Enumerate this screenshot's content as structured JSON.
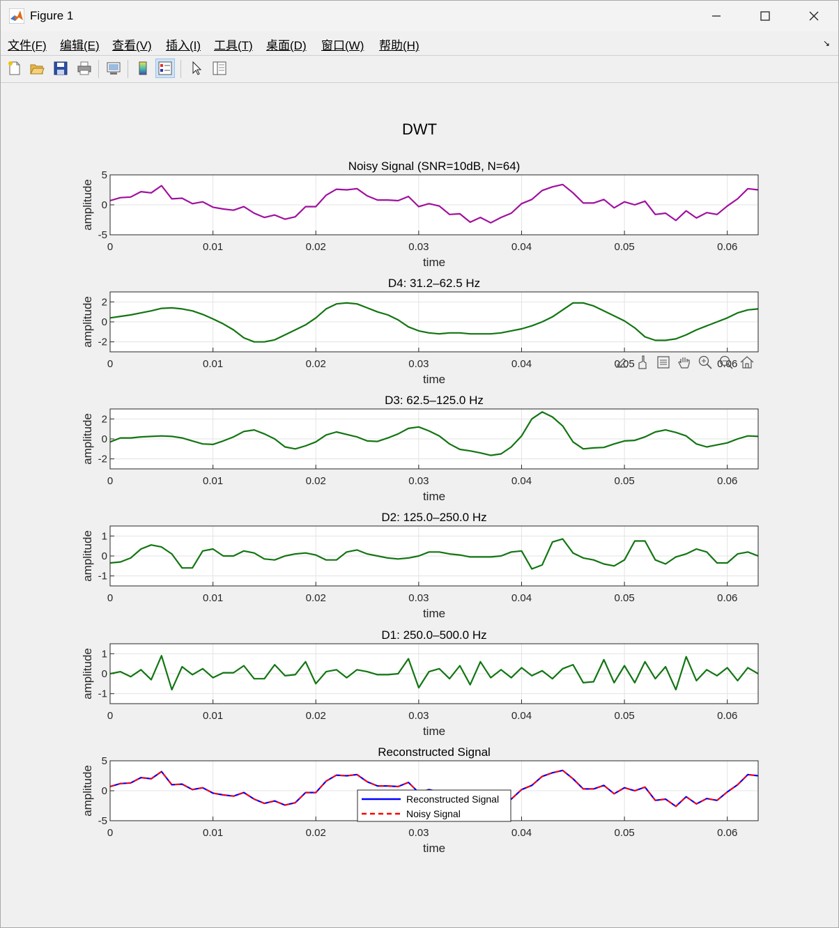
{
  "window": {
    "title": "Figure 1"
  },
  "menu": [
    "文件(F)",
    "编辑(E)",
    "查看(V)",
    "插入(I)",
    "工具(T)",
    "桌面(D)",
    "窗口(W)",
    "帮助(H)"
  ],
  "menu_corner": "↘",
  "toolbar_icons": [
    "new-figure-icon",
    "open-file-icon",
    "save-icon",
    "print-icon",
    "link-plot-icon",
    "insert-colorbar-icon",
    "insert-legend-icon",
    "edit-plot-icon",
    "property-inspector-icon"
  ],
  "axes_toolbar_icons": [
    "brush-export-icon",
    "data-brush-icon",
    "data-tips-icon",
    "pan-icon",
    "zoom-in-icon",
    "zoom-out-icon",
    "restore-view-icon"
  ],
  "colors": {
    "noisy": "#a0109e",
    "detail": "#127512",
    "recon": "#0000ff",
    "noisy_dashed": "#ff0000"
  },
  "chart_data": {
    "type": "line",
    "title": "DWT",
    "x_start": 0,
    "x_step": 0.001,
    "n": 64,
    "xlim": [
      0,
      0.063
    ],
    "x_ticks": [
      0,
      0.01,
      0.02,
      0.03,
      0.04,
      0.05,
      0.06
    ],
    "x_tick_labels": [
      "0",
      "0.01",
      "0.02",
      "0.03",
      "0.04",
      "0.05",
      "0.06"
    ],
    "subplots": [
      {
        "title": "Noisy Signal (SNR=10dB, N=64)",
        "xlabel": "time",
        "ylabel": "amplitude",
        "ylim": [
          -5,
          5
        ],
        "y_ticks": [
          -5,
          0,
          5
        ],
        "grid": true,
        "series": [
          {
            "values": [
              0.7,
              1.2,
              1.3,
              2.2,
              2.0,
              3.2,
              1.0,
              1.1,
              0.2,
              0.5,
              -0.4,
              -0.7,
              -0.9,
              -0.3,
              -1.4,
              -2.1,
              -1.7,
              -2.4,
              -2.0,
              -0.3,
              -0.3,
              1.6,
              2.6,
              2.5,
              2.7,
              1.5,
              0.8,
              0.8,
              0.7,
              1.4,
              -0.3,
              0.2,
              -0.2,
              -1.6,
              -1.5,
              -2.9,
              -2.1,
              -3.0,
              -2.1,
              -1.4,
              0.2,
              0.9,
              2.4,
              3.0,
              3.4,
              2.0,
              0.3,
              0.3,
              0.9,
              -0.5,
              0.5,
              0.0,
              0.6,
              -1.6,
              -1.4,
              -2.6,
              -1.0,
              -2.2,
              -1.3,
              -1.6,
              -0.2,
              1.0,
              2.7,
              2.5
            ]
          }
        ]
      },
      {
        "title": "D4: 31.2–62.5 Hz",
        "xlabel": "time",
        "ylabel": "amplitude",
        "ylim": [
          -3,
          3
        ],
        "y_ticks": [
          -2,
          0,
          2
        ],
        "grid": true,
        "series": [
          {
            "values": [
              0.4,
              0.55,
              0.7,
              0.9,
              1.1,
              1.35,
              1.4,
              1.3,
              1.1,
              0.75,
              0.3,
              -0.2,
              -0.8,
              -1.6,
              -2.0,
              -2.0,
              -1.8,
              -1.3,
              -0.8,
              -0.3,
              0.4,
              1.3,
              1.8,
              1.9,
              1.8,
              1.4,
              1.0,
              0.7,
              0.2,
              -0.5,
              -0.9,
              -1.1,
              -1.2,
              -1.1,
              -1.1,
              -1.2,
              -1.2,
              -1.2,
              -1.1,
              -0.9,
              -0.7,
              -0.4,
              0.0,
              0.5,
              1.2,
              1.9,
              1.9,
              1.6,
              1.1,
              0.6,
              0.1,
              -0.6,
              -1.5,
              -1.85,
              -1.85,
              -1.7,
              -1.3,
              -0.8,
              -0.4,
              0.0,
              0.4,
              0.9,
              1.2,
              1.3
            ]
          }
        ]
      },
      {
        "title": "D3: 62.5–125.0 Hz",
        "xlabel": "time",
        "ylabel": "amplitude",
        "ylim": [
          -3,
          3
        ],
        "y_ticks": [
          -2,
          0,
          2
        ],
        "grid": true,
        "series": [
          {
            "values": [
              -0.3,
              0.1,
              0.1,
              0.2,
              0.25,
              0.3,
              0.25,
              0.1,
              -0.2,
              -0.5,
              -0.55,
              -0.2,
              0.2,
              0.75,
              0.9,
              0.5,
              0.0,
              -0.8,
              -1.0,
              -0.7,
              -0.3,
              0.4,
              0.7,
              0.45,
              0.2,
              -0.2,
              -0.25,
              0.1,
              0.5,
              1.05,
              1.2,
              0.8,
              0.3,
              -0.5,
              -1.05,
              -1.2,
              -1.4,
              -1.65,
              -1.5,
              -0.8,
              0.3,
              2.0,
              2.7,
              2.2,
              1.3,
              -0.3,
              -1.0,
              -0.9,
              -0.85,
              -0.5,
              -0.2,
              -0.15,
              0.2,
              0.7,
              0.9,
              0.65,
              0.3,
              -0.5,
              -0.8,
              -0.6,
              -0.4,
              0.0,
              0.3,
              0.25
            ]
          }
        ]
      },
      {
        "title": "D2: 125.0–250.0 Hz",
        "xlabel": "time",
        "ylabel": "amplitude",
        "ylim": [
          -1.5,
          1.5
        ],
        "y_ticks": [
          -1,
          0,
          1
        ],
        "grid": true,
        "series": [
          {
            "values": [
              -0.35,
              -0.3,
              -0.1,
              0.35,
              0.55,
              0.45,
              0.1,
              -0.6,
              -0.6,
              0.25,
              0.35,
              0.0,
              0.0,
              0.25,
              0.15,
              -0.15,
              -0.2,
              0.0,
              0.1,
              0.15,
              0.05,
              -0.2,
              -0.2,
              0.2,
              0.3,
              0.1,
              0.0,
              -0.1,
              -0.15,
              -0.1,
              0.0,
              0.2,
              0.2,
              0.1,
              0.05,
              -0.05,
              -0.05,
              -0.05,
              0.0,
              0.2,
              0.25,
              -0.65,
              -0.45,
              0.7,
              0.85,
              0.15,
              -0.1,
              -0.2,
              -0.4,
              -0.5,
              -0.2,
              0.75,
              0.75,
              -0.2,
              -0.4,
              -0.05,
              0.1,
              0.35,
              0.2,
              -0.35,
              -0.35,
              0.1,
              0.2,
              0.0
            ]
          }
        ]
      },
      {
        "title": "D1: 250.0–500.0 Hz",
        "xlabel": "time",
        "ylabel": "amplitude",
        "ylim": [
          -1.5,
          1.5
        ],
        "y_ticks": [
          -1,
          0,
          1
        ],
        "grid": true,
        "series": [
          {
            "values": [
              0.0,
              0.1,
              -0.15,
              0.2,
              -0.3,
              0.9,
              -0.8,
              0.35,
              -0.05,
              0.25,
              -0.2,
              0.05,
              0.05,
              0.4,
              -0.25,
              -0.25,
              0.45,
              -0.1,
              -0.05,
              0.6,
              -0.5,
              0.1,
              0.2,
              -0.2,
              0.2,
              0.1,
              -0.05,
              -0.05,
              0.0,
              0.75,
              -0.7,
              0.1,
              0.25,
              -0.25,
              0.4,
              -0.55,
              0.6,
              -0.2,
              0.2,
              -0.2,
              0.3,
              -0.1,
              0.15,
              -0.25,
              0.25,
              0.45,
              -0.45,
              -0.4,
              0.7,
              -0.45,
              0.4,
              -0.45,
              0.6,
              -0.25,
              0.35,
              -0.8,
              0.85,
              -0.35,
              0.2,
              -0.1,
              0.3,
              -0.35,
              0.3,
              0.0
            ]
          }
        ]
      },
      {
        "title": "Reconstructed Signal",
        "xlabel": "time",
        "ylabel": "amplitude",
        "ylim": [
          -5,
          5
        ],
        "y_ticks": [
          -5,
          0,
          5
        ],
        "grid": true,
        "legend": {
          "position": "south",
          "entries": [
            "Reconstructed Signal",
            "Noisy Signal"
          ]
        },
        "series": [
          {
            "name": "Reconstructed Signal",
            "style": "solid",
            "values": [
              0.7,
              1.2,
              1.3,
              2.2,
              2.0,
              3.2,
              1.0,
              1.1,
              0.2,
              0.5,
              -0.4,
              -0.7,
              -0.9,
              -0.3,
              -1.4,
              -2.1,
              -1.7,
              -2.4,
              -2.0,
              -0.3,
              -0.3,
              1.6,
              2.6,
              2.5,
              2.7,
              1.5,
              0.8,
              0.8,
              0.7,
              1.4,
              -0.3,
              0.2,
              -0.2,
              -1.6,
              -1.5,
              -2.9,
              -2.1,
              -3.0,
              -2.1,
              -1.4,
              0.2,
              0.9,
              2.4,
              3.0,
              3.4,
              2.0,
              0.3,
              0.3,
              0.9,
              -0.5,
              0.5,
              0.0,
              0.6,
              -1.6,
              -1.4,
              -2.6,
              -1.0,
              -2.2,
              -1.3,
              -1.6,
              -0.2,
              1.0,
              2.7,
              2.5
            ]
          },
          {
            "name": "Noisy Signal",
            "style": "dashed",
            "values": [
              0.7,
              1.2,
              1.3,
              2.2,
              2.0,
              3.2,
              1.0,
              1.1,
              0.2,
              0.5,
              -0.4,
              -0.7,
              -0.9,
              -0.3,
              -1.4,
              -2.1,
              -1.7,
              -2.4,
              -2.0,
              -0.3,
              -0.3,
              1.6,
              2.6,
              2.5,
              2.7,
              1.5,
              0.8,
              0.8,
              0.7,
              1.4,
              -0.3,
              0.2,
              -0.2,
              -1.6,
              -1.5,
              -2.9,
              -2.1,
              -3.0,
              -2.1,
              -1.4,
              0.2,
              0.9,
              2.4,
              3.0,
              3.4,
              2.0,
              0.3,
              0.3,
              0.9,
              -0.5,
              0.5,
              0.0,
              0.6,
              -1.6,
              -1.4,
              -2.6,
              -1.0,
              -2.2,
              -1.3,
              -1.6,
              -0.2,
              1.0,
              2.7,
              2.5
            ]
          }
        ]
      }
    ]
  }
}
